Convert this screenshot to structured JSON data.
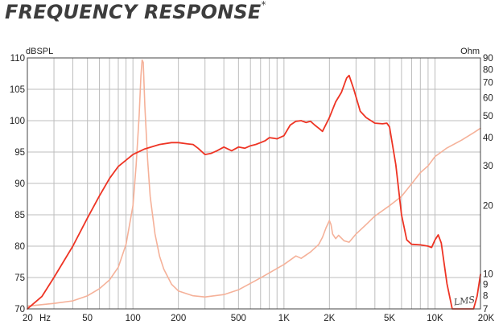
{
  "title": "FREQUENCY RESPONSE",
  "title_mark": "*",
  "watermark": "LMS",
  "chart_data": {
    "type": "line",
    "title": "FREQUENCY RESPONSE",
    "xlabel": "",
    "ylabel_left": "dBSPL",
    "ylabel_right": "Ohm",
    "x_scale": "log",
    "xlim": [
      20,
      20000
    ],
    "ylim_left": [
      70,
      110
    ],
    "ylim_right": [
      7,
      90
    ],
    "y_right_scale": "log",
    "grid": true,
    "x_ticks": [
      {
        "v": 20,
        "label": "20"
      },
      {
        "v": 50,
        "label": "50"
      },
      {
        "v": 100,
        "label": "100"
      },
      {
        "v": 200,
        "label": "200"
      },
      {
        "v": 500,
        "label": "500"
      },
      {
        "v": 1000,
        "label": "1K"
      },
      {
        "v": 2000,
        "label": "2K"
      },
      {
        "v": 5000,
        "label": "5K"
      },
      {
        "v": 10000,
        "label": "10K"
      },
      {
        "v": 20000,
        "label": "20K"
      }
    ],
    "x_unit_label": "Hz",
    "y_left_ticks": [
      70,
      75,
      80,
      85,
      90,
      95,
      100,
      105,
      110
    ],
    "y_right_ticks": [
      7,
      8,
      9,
      10,
      20,
      30,
      40,
      50,
      60,
      70,
      80,
      90
    ],
    "colors": {
      "spl": "#ee3424",
      "impedance": "#f5b199",
      "grid": "#bdbdbd",
      "frame": "#444444"
    },
    "series": [
      {
        "axis": "left",
        "x": [
          20,
          25,
          30,
          40,
          50,
          60,
          70,
          80,
          100,
          120,
          150,
          180,
          200,
          230,
          250,
          270,
          300,
          330,
          360,
          400,
          450,
          500,
          550,
          600,
          650,
          700,
          750,
          800,
          850,
          900,
          1000,
          1100,
          1200,
          1300,
          1400,
          1500,
          1600,
          1700,
          1800,
          2000,
          2200,
          2400,
          2600,
          2700,
          2900,
          3200,
          3500,
          4000,
          4500,
          4800,
          5000,
          5500,
          6000,
          6500,
          7000,
          8000,
          9000,
          9500,
          10000,
          10500,
          11000,
          12000,
          13000,
          14000,
          16000,
          18000,
          19000,
          20000
        ],
        "y": [
          70,
          72,
          75,
          80,
          84.5,
          88,
          90.8,
          92.7,
          94.6,
          95.5,
          96.2,
          96.5,
          96.5,
          96.3,
          96.2,
          95.6,
          94.6,
          94.8,
          95.2,
          95.8,
          95.2,
          95.8,
          95.6,
          96.0,
          96.2,
          96.5,
          96.8,
          97.3,
          97.2,
          97.1,
          97.6,
          99.3,
          99.9,
          100.0,
          99.7,
          99.9,
          99.3,
          98.8,
          98.3,
          100.5,
          103.0,
          104.5,
          106.8,
          107.2,
          105.0,
          101.5,
          100.5,
          99.6,
          99.5,
          99.6,
          99.0,
          93.0,
          85.0,
          81.0,
          80.3,
          80.2,
          80.0,
          79.8,
          81.0,
          81.8,
          80.5,
          74.0,
          69.5,
          69.5,
          69.5,
          69.5,
          72.0,
          75.5
        ]
      },
      {
        "axis": "right",
        "x": [
          20,
          30,
          40,
          50,
          60,
          70,
          80,
          90,
          100,
          105,
          110,
          113,
          115,
          117,
          120,
          125,
          130,
          140,
          150,
          160,
          180,
          200,
          250,
          300,
          400,
          500,
          700,
          1000,
          1200,
          1300,
          1500,
          1700,
          1800,
          1900,
          2000,
          2050,
          2100,
          2200,
          2300,
          2500,
          2700,
          3000,
          3500,
          4000,
          5000,
          6000,
          7000,
          8000,
          9000,
          10000,
          12000,
          15000,
          18000,
          20000
        ],
        "y": [
          7.2,
          7.4,
          7.6,
          8.0,
          8.6,
          9.4,
          10.7,
          13.5,
          20.0,
          30.0,
          50.0,
          75.0,
          88.0,
          86.0,
          55.0,
          32.0,
          22.0,
          15.0,
          12.0,
          10.5,
          9.0,
          8.4,
          8.0,
          7.9,
          8.1,
          8.5,
          9.6,
          11.0,
          12.0,
          11.7,
          12.5,
          13.5,
          14.5,
          16.0,
          17.2,
          16.5,
          15.0,
          14.3,
          14.8,
          14.0,
          13.8,
          15.0,
          16.5,
          18.0,
          20.0,
          22.0,
          25.0,
          28.0,
          30.0,
          33.0,
          36.0,
          39.0,
          42.0,
          44.0
        ]
      }
    ]
  }
}
